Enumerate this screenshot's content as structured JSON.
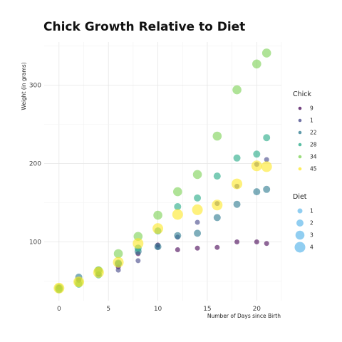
{
  "chart_data": {
    "type": "scatter",
    "title": "Chick Growth Relative to Diet",
    "xlabel": "Number of Days since Birth",
    "ylabel": "Weight (in grams)",
    "xlim": [
      -1.5,
      22.5
    ],
    "ylim": [
      25,
      355
    ],
    "x_ticks": [
      0,
      5,
      10,
      15,
      20
    ],
    "y_ticks": [
      100,
      200,
      300
    ],
    "grid": true,
    "legend_position": "right",
    "colors": {
      "9": "#440154",
      "1": "#414487",
      "22": "#2a788e",
      "28": "#22a884",
      "34": "#7ad151",
      "45": "#fde725",
      "diet_size": "#56b4e9"
    },
    "diet_sizes": {
      "1": 3.5,
      "2": 5.0,
      "3": 6.3,
      "4": 7.5
    },
    "series": [
      {
        "name": "9",
        "diet": "1",
        "x": [
          0,
          2,
          4,
          6,
          8,
          10,
          12,
          14,
          16,
          18,
          20,
          21
        ],
        "y": [
          42,
          51,
          59,
          68,
          85,
          96,
          90,
          92,
          93,
          100,
          100,
          98
        ]
      },
      {
        "name": "1",
        "diet": "1",
        "x": [
          0,
          2,
          4,
          6,
          8,
          10,
          12,
          14,
          16,
          18,
          20,
          21
        ],
        "y": [
          42,
          51,
          59,
          64,
          76,
          93,
          106,
          125,
          149,
          171,
          199,
          205
        ]
      },
      {
        "name": "22",
        "diet": "2",
        "x": [
          0,
          2,
          4,
          6,
          8,
          10,
          12,
          14,
          16,
          18,
          20,
          21
        ],
        "y": [
          41,
          55,
          64,
          72,
          88,
          94,
          108,
          111,
          131,
          148,
          164,
          167
        ]
      },
      {
        "name": "28",
        "diet": "2",
        "x": [
          0,
          2,
          4,
          6,
          8,
          10,
          12,
          14,
          16,
          18,
          20,
          21
        ],
        "y": [
          39,
          46,
          58,
          73,
          92,
          114,
          145,
          156,
          184,
          207,
          212,
          233
        ]
      },
      {
        "name": "34",
        "diet": "3",
        "x": [
          0,
          2,
          4,
          6,
          8,
          10,
          12,
          14,
          16,
          18,
          20,
          21
        ],
        "y": [
          41,
          49,
          63,
          85,
          107,
          134,
          164,
          186,
          235,
          294,
          327,
          341
        ]
      },
      {
        "name": "45",
        "diet": "4",
        "x": [
          0,
          2,
          4,
          6,
          8,
          10,
          12,
          14,
          16,
          18,
          20,
          21
        ],
        "y": [
          41,
          49,
          61,
          74,
          98,
          117,
          135,
          141,
          147,
          174,
          197,
          196
        ]
      }
    ],
    "legend": {
      "chick_title": "Chick",
      "chick_items": [
        "9",
        "1",
        "22",
        "28",
        "34",
        "45"
      ],
      "diet_title": "Diet",
      "diet_items": [
        "1",
        "2",
        "3",
        "4"
      ]
    }
  }
}
